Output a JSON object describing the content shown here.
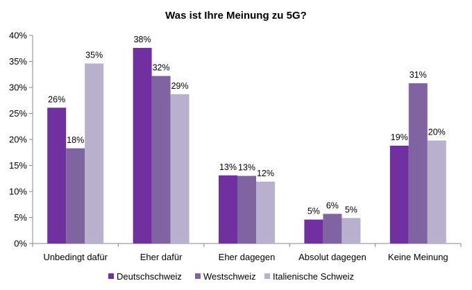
{
  "chart_data": {
    "type": "bar",
    "title": "Was ist Ihre Meinung zu 5G?",
    "categories": [
      "Unbedingt dafür",
      "Eher dafür",
      "Eher dagegen",
      "Absolut dagegen",
      "Keine Meinung"
    ],
    "series": [
      {
        "name": "Deutschschweiz",
        "color": "#7030a0",
        "values": [
          26.1,
          37.6,
          13.1,
          4.6,
          18.8
        ],
        "labels": [
          "26%",
          "38%",
          "13%",
          "5%",
          "19%"
        ]
      },
      {
        "name": "Westschweiz",
        "color": "#8064a2",
        "values": [
          18.3,
          32.2,
          13.0,
          5.7,
          30.8
        ],
        "labels": [
          "18%",
          "32%",
          "13%",
          "6%",
          "31%"
        ]
      },
      {
        "name": "Italienische Schweiz",
        "color": "#b8b0cc",
        "values": [
          34.6,
          28.7,
          11.9,
          4.9,
          19.8
        ],
        "labels": [
          "35%",
          "29%",
          "12%",
          "5%",
          "20%"
        ]
      }
    ],
    "yticks": [
      "0%",
      "5%",
      "10%",
      "15%",
      "20%",
      "25%",
      "30%",
      "35%",
      "40%"
    ],
    "ylim": [
      0,
      40
    ],
    "ylabel": "",
    "xlabel": "",
    "legend_position": "bottom",
    "grid": false
  }
}
